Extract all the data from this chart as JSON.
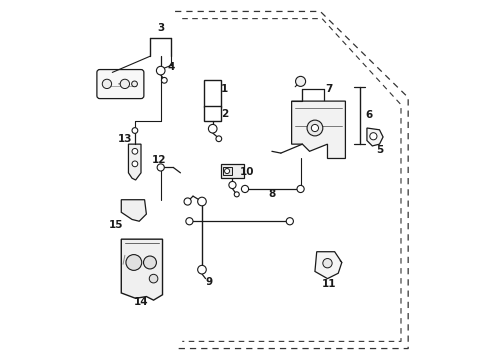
{
  "background_color": "#ffffff",
  "line_color": "#1a1a1a",
  "dashed_color": "#333333",
  "fig_width": 4.9,
  "fig_height": 3.6,
  "dpi": 100,
  "door_outer": {
    "x": [
      0.315,
      0.315,
      0.53,
      0.53,
      0.62,
      0.935,
      0.935,
      0.315
    ],
    "y": [
      0.97,
      0.03,
      0.03,
      0.06,
      0.97,
      0.97,
      0.72,
      0.97
    ]
  },
  "door_inner": {
    "x": [
      0.335,
      0.335,
      0.545,
      0.545,
      0.635,
      0.91,
      0.91,
      0.335
    ],
    "y": [
      0.95,
      0.05,
      0.05,
      0.08,
      0.95,
      0.95,
      0.73,
      0.95
    ]
  }
}
